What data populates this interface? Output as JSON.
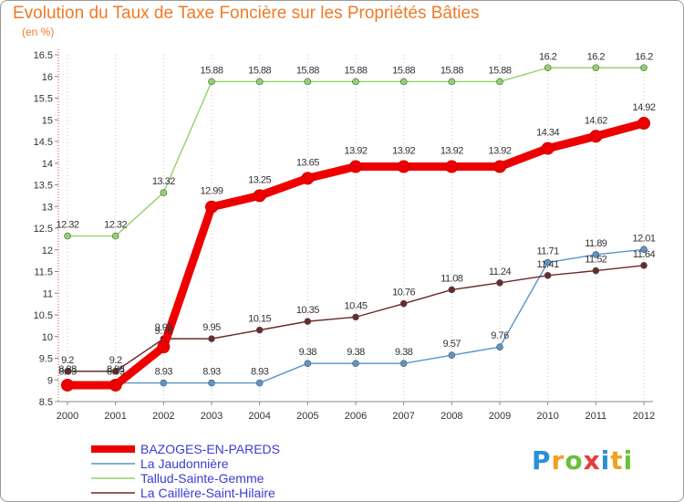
{
  "chart_data": {
    "type": "line",
    "title": "Evolution du Taux de Taxe Foncière sur les Propriétés Bâties",
    "subtitle": "(en %)",
    "x": [
      "2000",
      "2001",
      "2002",
      "2003",
      "2004",
      "2005",
      "2006",
      "2007",
      "2008",
      "2009",
      "2010",
      "2011",
      "2012"
    ],
    "ylim": [
      8.5,
      16.5
    ],
    "y_ticks": [
      "8.5",
      "9",
      "9.5",
      "10",
      "10.5",
      "11",
      "11.5",
      "12",
      "12.5",
      "13",
      "13.5",
      "14",
      "14.5",
      "15",
      "15.5",
      "16",
      "16.5"
    ],
    "grid": "vertical dotted",
    "legend_position": "bottom-left",
    "series": [
      {
        "name": "BAZOGES-EN-PAREDS",
        "color": "#ee0000",
        "values": [
          8.88,
          8.88,
          9.76,
          12.99,
          13.25,
          13.65,
          13.92,
          13.92,
          13.92,
          13.92,
          14.34,
          14.62,
          14.92
        ],
        "labels": [
          "8.88",
          "8.88",
          "9.76",
          "12.99",
          "13.25",
          "13.65",
          "13.92",
          "13.92",
          "13.92",
          "13.92",
          "14.34",
          "14.62",
          "14.92"
        ]
      },
      {
        "name": "La Jaudonnière",
        "color": "#5b95c8",
        "values": [
          8.93,
          8.93,
          8.93,
          8.93,
          8.93,
          9.38,
          9.38,
          9.38,
          9.57,
          9.76,
          11.71,
          11.89,
          12.01
        ],
        "labels": [
          "8.93",
          "8.93",
          "8.93",
          "8.93",
          "8.93",
          "9.38",
          "9.38",
          "9.38",
          "9.57",
          "9.76",
          "11.71",
          "11.89",
          "12.01"
        ]
      },
      {
        "name": "Tallud-Sainte-Gemme",
        "color": "#8fd46a",
        "values": [
          12.32,
          12.32,
          13.32,
          15.88,
          15.88,
          15.88,
          15.88,
          15.88,
          15.88,
          15.88,
          16.2,
          16.2,
          16.2
        ],
        "labels": [
          "12.32",
          "12.32",
          "13.32",
          "15.88",
          "15.88",
          "15.88",
          "15.88",
          "15.88",
          "15.88",
          "15.88",
          "16.2",
          "16.2",
          "16.2"
        ]
      },
      {
        "name": "La Caillère-Saint-Hilaire",
        "color": "#6b2a2a",
        "values": [
          9.2,
          9.2,
          9.95,
          9.95,
          10.15,
          10.35,
          10.45,
          10.76,
          11.08,
          11.24,
          11.41,
          11.52,
          11.64
        ],
        "labels": [
          "9.2",
          "9.2",
          "9.95",
          "9.95",
          "10.15",
          "10.35",
          "10.45",
          "10.76",
          "11.08",
          "11.24",
          "11.41",
          "11.52",
          "11.64"
        ]
      }
    ]
  },
  "logo": {
    "text": "Proxiti"
  }
}
